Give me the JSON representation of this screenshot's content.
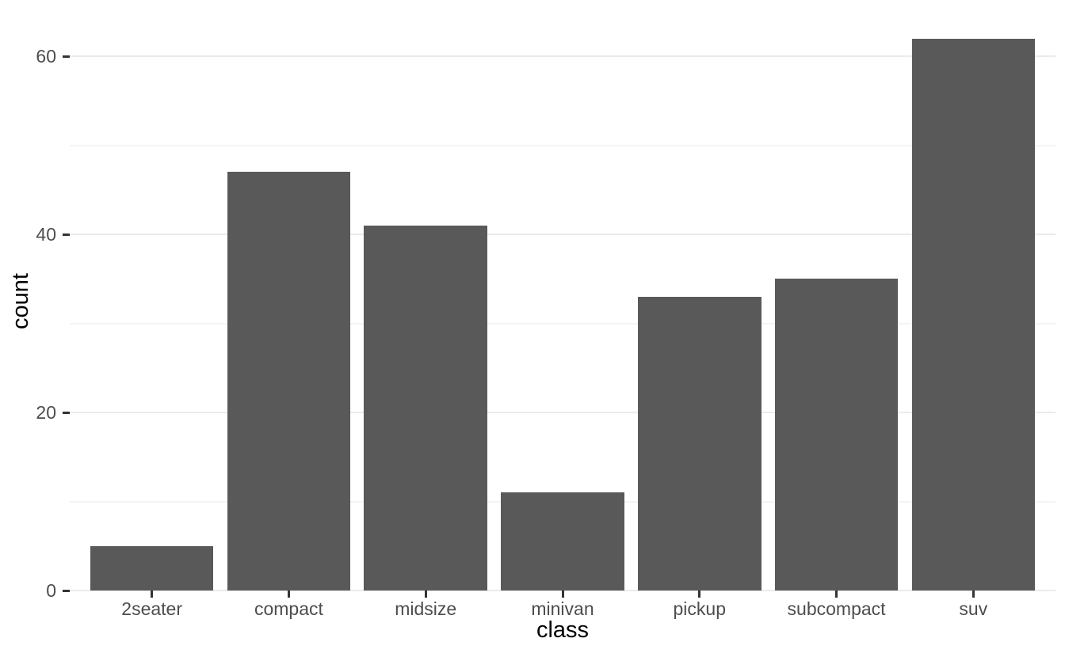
{
  "chart_data": {
    "type": "bar",
    "categories": [
      "2seater",
      "compact",
      "midsize",
      "minivan",
      "pickup",
      "subcompact",
      "suv"
    ],
    "values": [
      5,
      47,
      41,
      11,
      33,
      35,
      62
    ],
    "title": "",
    "xlabel": "class",
    "ylabel": "count",
    "ylim": [
      0,
      65
    ],
    "y_major_ticks": [
      0,
      20,
      40,
      60
    ],
    "y_minor_ticks": [
      10,
      30,
      50
    ],
    "y_tick_labels": [
      "0",
      "20",
      "40",
      "60"
    ],
    "legend": "none",
    "grid": "horizontal major and minor, no vertical",
    "bar_gap_ratio": 0.1,
    "colors": {
      "bar_fill": "#595959",
      "grid_major": "#ebebeb",
      "grid_minor": "#f4f4f4",
      "tick_label": "#4d4d4d",
      "tick_mark": "#333333",
      "axis_title": "#000000",
      "background": "#ffffff"
    }
  }
}
